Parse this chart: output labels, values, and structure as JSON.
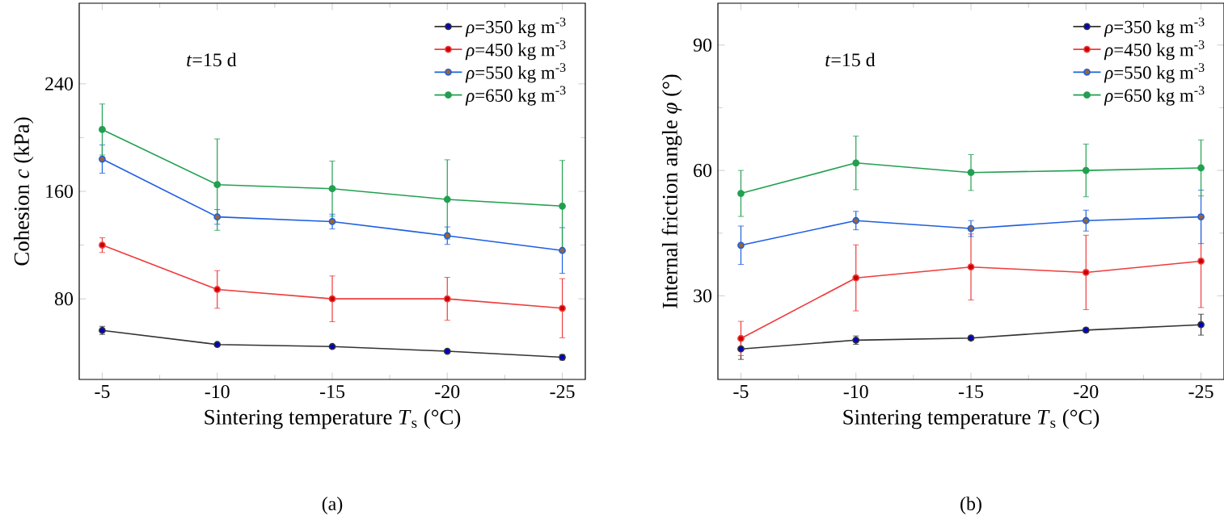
{
  "chart_data": [
    {
      "type": "line",
      "xlabel": "Sintering temperature *T*$_{s}$ (°C)",
      "ylabel": "Cohesion *c* (kPa)",
      "x": [
        -5,
        -10,
        -15,
        -20,
        -25
      ],
      "xlim": [
        -4,
        -26
      ],
      "xticks": [
        -5,
        -10,
        -15,
        -20,
        -25
      ],
      "ylim": [
        20,
        300
      ],
      "yticks": [
        80,
        160,
        240
      ],
      "marker": "circle",
      "legend": "top right",
      "grid": false,
      "annotations": [
        "*t*=15 d",
        "(a)"
      ],
      "series": [
        {
          "name": "*ρ*=350 kg m$^{-3}$",
          "color": "#333333",
          "values": [
            56.5,
            46,
            44.5,
            41,
            36.5
          ],
          "errors": [
            3,
            1,
            1,
            1,
            2
          ]
        },
        {
          "name": "*ρ*=450 kg m$^{-3}$",
          "color": "#ef3b3b",
          "values": [
            120,
            87,
            80,
            80,
            73
          ],
          "errors": [
            5.5,
            14,
            17,
            16,
            22
          ]
        },
        {
          "name": "*ρ*=550 kg m$^{-3}$",
          "color": "#1f5fe0",
          "values": [
            184,
            141,
            137.5,
            127,
            116
          ],
          "errors": [
            10.5,
            5.5,
            5.5,
            6.5,
            17
          ]
        },
        {
          "name": "*ρ*=650 kg m$^{-3}$",
          "color": "#22a050",
          "values": [
            206,
            165,
            162,
            154,
            149
          ],
          "errors": [
            19,
            34,
            20.5,
            29.5,
            34
          ]
        }
      ]
    },
    {
      "type": "line",
      "xlabel": "Sintering temperature *T*$_{s}$ (°C)",
      "ylabel": "Internal friction angle *φ* (°)",
      "x": [
        -5,
        -10,
        -15,
        -20,
        -25
      ],
      "xlim": [
        -4,
        -26
      ],
      "xticks": [
        -5,
        -10,
        -15,
        -20,
        -25
      ],
      "ylim": [
        10,
        100
      ],
      "yticks": [
        30,
        60,
        90
      ],
      "marker": "circle",
      "legend": "top right",
      "grid": false,
      "annotations": [
        "*t*=15 d",
        "(b)"
      ],
      "series": [
        {
          "name": "*ρ*=350 kg m$^{-3}$",
          "color": "#333333",
          "values": [
            17.3,
            19.4,
            19.9,
            21.8,
            23.1
          ],
          "errors": [
            2.5,
            1,
            0.5,
            0.5,
            2.5
          ]
        },
        {
          "name": "*ρ*=450 kg m$^{-3}$",
          "color": "#ef3b3b",
          "values": [
            19.8,
            34.3,
            36.9,
            35.6,
            38.3
          ],
          "errors": [
            4.1,
            7.9,
            7.9,
            8.9,
            11.1
          ]
        },
        {
          "name": "*ρ*=550 kg m$^{-3}$",
          "color": "#1f5fe0",
          "values": [
            42.1,
            48,
            46.1,
            48,
            48.9
          ],
          "errors": [
            4.6,
            2.2,
            1.9,
            2.5,
            6.4
          ]
        },
        {
          "name": "*ρ*=650 kg m$^{-3}$",
          "color": "#22a050",
          "values": [
            54.5,
            61.8,
            59.5,
            60,
            60.6
          ],
          "errors": [
            5.5,
            6.4,
            4.3,
            6.3,
            6.7
          ]
        }
      ]
    }
  ]
}
